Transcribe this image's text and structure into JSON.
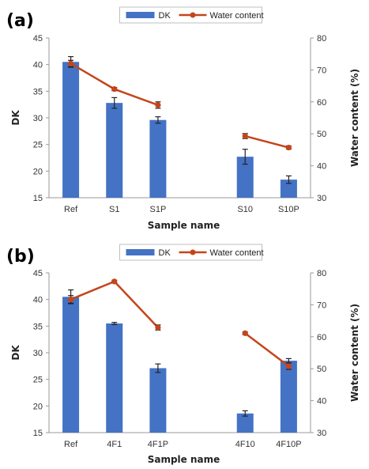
{
  "colors": {
    "bar": "#4472C4",
    "line": "#C5451B",
    "axis": "#9a9a9a",
    "errorbar": "#222222"
  },
  "chart_data": [
    {
      "type": "bar",
      "panel_label": "(a)",
      "categories": [
        "Ref",
        "S1",
        "S1P",
        "",
        "S10",
        "S10P"
      ],
      "xlabel": "Sample name",
      "ylabel": "DK",
      "y2label": "Water content (%)",
      "ylim": [
        15,
        45
      ],
      "y_ticks": [
        15,
        20,
        25,
        30,
        35,
        40,
        45
      ],
      "y2lim": [
        30,
        80
      ],
      "y2_ticks": [
        30,
        40,
        50,
        60,
        70,
        80
      ],
      "legend": {
        "position": "top-center",
        "entries": [
          "DK",
          "Water content"
        ]
      },
      "series": [
        {
          "name": "DK",
          "kind": "bar",
          "axis": "left",
          "values": [
            40.5,
            32.8,
            29.6,
            null,
            22.7,
            18.4
          ],
          "errors": [
            1.0,
            1.0,
            0.6,
            null,
            1.4,
            0.7
          ]
        },
        {
          "name": "Water content",
          "kind": "line",
          "axis": "right",
          "values": [
            72,
            64,
            59,
            null,
            49.3,
            45.7
          ],
          "errors": [
            1.0,
            0.5,
            1.0,
            null,
            0.8,
            0.5
          ]
        }
      ]
    },
    {
      "type": "bar",
      "panel_label": "(b)",
      "categories": [
        "Ref",
        "4F1",
        "4F1P",
        "",
        "4F10",
        "4F10P"
      ],
      "xlabel": "Sample name",
      "ylabel": "DK",
      "y2label": "Water content (%)",
      "ylim": [
        15,
        45
      ],
      "y_ticks": [
        15,
        20,
        25,
        30,
        35,
        40,
        45
      ],
      "y2lim": [
        30,
        80
      ],
      "y2_ticks": [
        30,
        40,
        50,
        60,
        70,
        80
      ],
      "legend": {
        "position": "top-center",
        "entries": [
          "DK",
          "Water content"
        ]
      },
      "series": [
        {
          "name": "DK",
          "kind": "bar",
          "axis": "left",
          "values": [
            40.5,
            35.5,
            27.1,
            null,
            18.6,
            28.5
          ],
          "errors": [
            1.3,
            0.2,
            0.8,
            null,
            0.5,
            0.4
          ]
        },
        {
          "name": "Water content",
          "kind": "line",
          "axis": "right",
          "values": [
            71.7,
            77.3,
            62.9,
            null,
            61.1,
            50.8
          ],
          "errors": [
            1.2,
            0.4,
            0.8,
            null,
            0.4,
            1.0
          ]
        }
      ]
    }
  ]
}
